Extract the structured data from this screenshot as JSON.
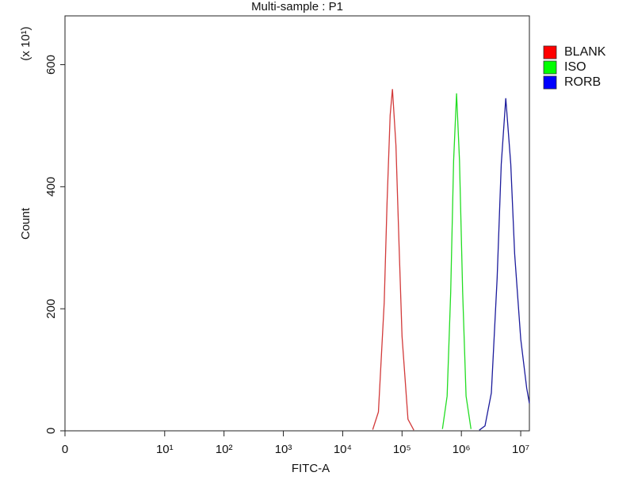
{
  "chart_data": {
    "type": "line",
    "title": "Multi-sample : P1",
    "x_label": "FITC-A",
    "y_label": "Count",
    "y_multiplier": "(x 10¹)",
    "xscale": "biexponential",
    "xlim": [
      0,
      14000000
    ],
    "xticks": [
      0,
      {
        "value": 10,
        "label": "10¹"
      },
      {
        "value": 100,
        "label": "10²"
      },
      {
        "value": 1000,
        "label": "10³"
      },
      {
        "value": 10000,
        "label": "10⁴"
      },
      {
        "value": 100000,
        "label": "10⁵"
      },
      {
        "value": 1000000,
        "label": "10⁶"
      },
      {
        "value": 10000000,
        "label": "10⁷"
      }
    ],
    "ylim": [
      0,
      680
    ],
    "yticks": [
      0,
      200,
      400,
      600
    ],
    "legend": "right",
    "series": [
      {
        "name": "BLANK",
        "color": "#d23a3a",
        "swatch": "#ff0000",
        "x": [
          32000,
          40000,
          50000,
          56000,
          63000,
          69000,
          79000,
          89000,
          100000,
          126000,
          158000
        ],
        "values": [
          2,
          31,
          210,
          374,
          517,
          560,
          468,
          306,
          155,
          19,
          1
        ]
      },
      {
        "name": "ISO",
        "color": "#22dd22",
        "swatch": "#00ff00",
        "x": [
          480000,
          575000,
          660000,
          740000,
          830000,
          930000,
          1050000,
          1200000,
          1450000
        ],
        "values": [
          3,
          57,
          227,
          443,
          553,
          443,
          227,
          57,
          3
        ]
      },
      {
        "name": "RORB",
        "color": "#1c1c9c",
        "swatch": "#0000ff",
        "x": [
          2000000,
          2500000,
          3200000,
          4000000,
          4700000,
          5600000,
          6800000,
          7900000,
          10000000,
          12600000,
          14000000
        ],
        "values": [
          1,
          8,
          62,
          250,
          437,
          545,
          437,
          290,
          150,
          70,
          45
        ]
      }
    ]
  }
}
